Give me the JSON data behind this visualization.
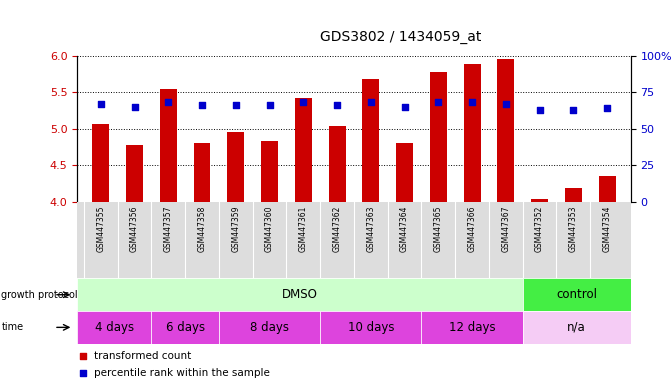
{
  "title": "GDS3802 / 1434059_at",
  "samples": [
    "GSM447355",
    "GSM447356",
    "GSM447357",
    "GSM447358",
    "GSM447359",
    "GSM447360",
    "GSM447361",
    "GSM447362",
    "GSM447363",
    "GSM447364",
    "GSM447365",
    "GSM447366",
    "GSM447367",
    "GSM447352",
    "GSM447353",
    "GSM447354"
  ],
  "transformed_count": [
    5.07,
    4.77,
    5.55,
    4.8,
    4.95,
    4.83,
    5.42,
    5.03,
    5.68,
    4.8,
    5.77,
    5.88,
    5.95,
    4.03,
    4.18,
    4.35
  ],
  "percentile_rank": [
    67,
    65,
    68,
    66,
    66,
    66,
    68,
    66,
    68,
    65,
    68,
    68,
    67,
    63,
    63,
    64
  ],
  "ylim_left": [
    4.0,
    6.0
  ],
  "ylim_right": [
    0,
    100
  ],
  "yticks_left": [
    4.0,
    4.5,
    5.0,
    5.5,
    6.0
  ],
  "yticks_right": [
    0,
    25,
    50,
    75,
    100
  ],
  "bar_color": "#cc0000",
  "dot_color": "#0000cc",
  "bar_width": 0.5,
  "dmso_color": "#ccffcc",
  "control_color": "#44ee44",
  "time_color": "#dd44dd",
  "na_color": "#f5ccf5",
  "bg_color": "#ffffff",
  "tick_label_color_left": "#cc0000",
  "tick_label_color_right": "#0000cc",
  "label_band_color": "#dddddd"
}
